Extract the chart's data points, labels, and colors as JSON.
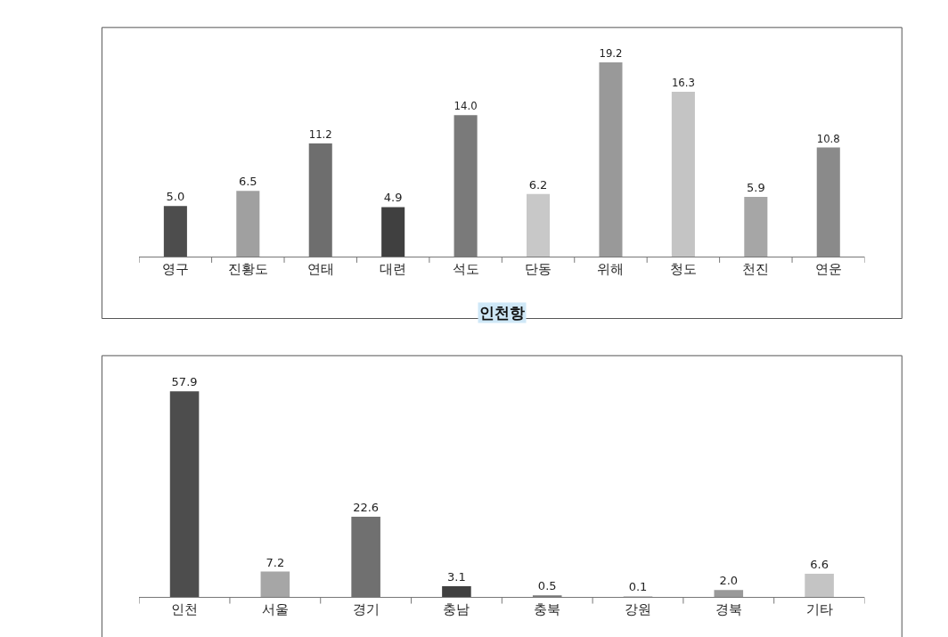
{
  "chart_data": [
    {
      "type": "bar",
      "categories": [
        "영구",
        "진황도",
        "연태",
        "대련",
        "석도",
        "단동",
        "위해",
        "청도",
        "천진",
        "연운"
      ],
      "values": [
        5.0,
        6.5,
        11.2,
        4.9,
        14.0,
        6.2,
        19.2,
        16.3,
        5.9,
        10.8
      ],
      "colors": [
        "#4d4d4d",
        "#a0a0a0",
        "#6e6e6e",
        "#404040",
        "#7a7a7a",
        "#c8c8c8",
        "#999999",
        "#c4c4c4",
        "#a6a6a6",
        "#8a8a8a"
      ],
      "value_labels": [
        "5.0",
        "6.5",
        "11.2",
        "4.9",
        "14.0",
        "6.2",
        "19.2",
        "16.3",
        "5.9",
        "10.8"
      ]
    },
    {
      "type": "bar",
      "title": "인천항",
      "categories": [
        "인천",
        "서울",
        "경기",
        "충남",
        "충북",
        "강원",
        "경북",
        "기타"
      ],
      "values": [
        57.9,
        7.2,
        22.6,
        3.1,
        0.5,
        0.1,
        2.0,
        6.6
      ],
      "colors": [
        "#4d4d4d",
        "#a6a6a6",
        "#707070",
        "#404040",
        "#7a7a7a",
        "#c8c8c8",
        "#999999",
        "#c4c4c4"
      ],
      "value_labels": [
        "57.9",
        "7.2",
        "22.6",
        "3.1",
        "0.5",
        "0.1",
        "2.0",
        "6.6"
      ]
    }
  ]
}
